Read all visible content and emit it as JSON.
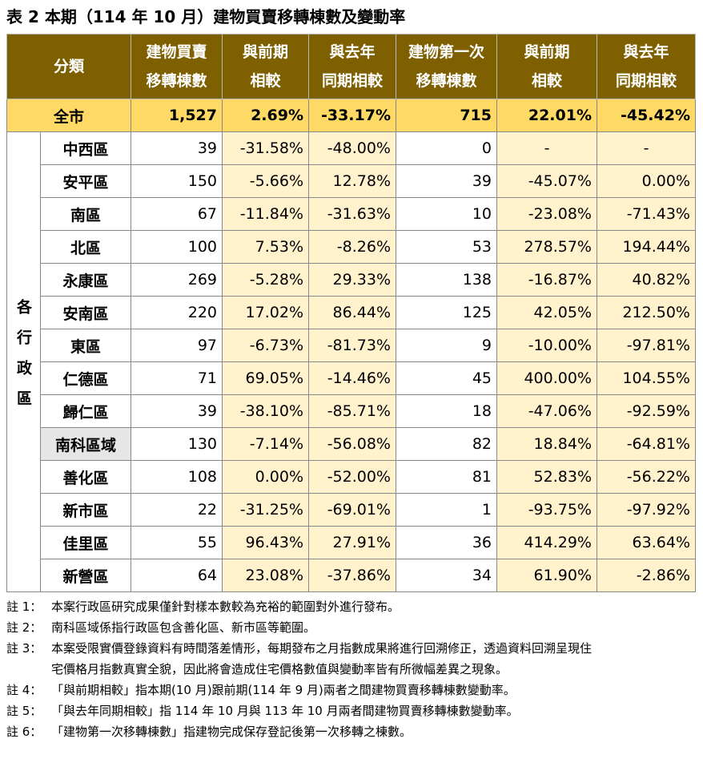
{
  "title": "表 2 本期（114 年 10 月）建物買賣移轉棟數及變動率",
  "table": {
    "headers": [
      [
        "分類"
      ],
      [
        "建物買賣",
        "移轉棟數"
      ],
      [
        "與前期",
        "相較"
      ],
      [
        "與去年",
        "同期相較"
      ],
      [
        "建物第一次",
        "移轉棟數"
      ],
      [
        "與前期",
        "相較"
      ],
      [
        "與去年",
        "同期相較"
      ]
    ],
    "total": [
      "全市",
      "1,527",
      "2.69%",
      "-33.17%",
      "715",
      "22.01%",
      "-45.42%"
    ],
    "group": "各行政區",
    "rows": [
      [
        "中西區",
        "39",
        "-31.58%",
        "-48.00%",
        "0",
        "-",
        "-"
      ],
      [
        "安平區",
        "150",
        "-5.66%",
        "12.78%",
        "39",
        "-45.07%",
        "0.00%"
      ],
      [
        "南區",
        "67",
        "-11.84%",
        "-31.63%",
        "10",
        "-23.08%",
        "-71.43%"
      ],
      [
        "北區",
        "100",
        "7.53%",
        "-8.26%",
        "53",
        "278.57%",
        "194.44%"
      ],
      [
        "永康區",
        "269",
        "-5.28%",
        "29.33%",
        "138",
        "-16.87%",
        "40.82%"
      ],
      [
        "安南區",
        "220",
        "17.02%",
        "86.44%",
        "125",
        "42.05%",
        "212.50%"
      ],
      [
        "東區",
        "97",
        "-6.73%",
        "-81.73%",
        "9",
        "-10.00%",
        "-97.81%"
      ],
      [
        "仁德區",
        "71",
        "69.05%",
        "-14.46%",
        "45",
        "400.00%",
        "104.55%"
      ],
      [
        "歸仁區",
        "39",
        "-38.10%",
        "-85.71%",
        "18",
        "-47.06%",
        "-92.59%"
      ],
      [
        "南科區域",
        "130",
        "-7.14%",
        "-56.08%",
        "82",
        "18.84%",
        "-64.81%"
      ],
      [
        "善化區",
        "108",
        "0.00%",
        "-52.00%",
        "81",
        "52.83%",
        "-56.22%"
      ],
      [
        "新市區",
        "22",
        "-31.25%",
        "-69.01%",
        "1",
        "-93.75%",
        "-97.92%"
      ],
      [
        "佳里區",
        "55",
        "96.43%",
        "27.91%",
        "36",
        "414.29%",
        "63.64%"
      ],
      [
        "新營區",
        "64",
        "23.08%",
        "-37.86%",
        "34",
        "61.90%",
        "-2.86%"
      ]
    ]
  },
  "notes": [
    {
      "label": "註 1：",
      "lines": [
        "本案行政區研究成果僅針對樣本數較為充裕的範圍對外進行發布。"
      ]
    },
    {
      "label": "註 2：",
      "lines": [
        "南科區域係指行政區包含善化區、新市區等範圍。"
      ]
    },
    {
      "label": "註 3：",
      "lines": [
        "本案受限實價登錄資料有時間落差情形，每期發布之月指數成果將進行回溯修正，透過資料回溯呈現住",
        "宅價格月指數真實全貌，因此將會造成住宅價格數值與變動率皆有所微幅差異之現象。"
      ]
    },
    {
      "label": "註 4：",
      "lines": [
        "「與前期相較」指本期(10 月)跟前期(114 年 9 月)兩者之間建物買賣移轉棟數變動率。"
      ]
    },
    {
      "label": "註 5：",
      "lines": [
        "「與去年同期相較」指 114 年 10 月與 113 年 10 月兩者間建物買賣移轉棟數變動率。"
      ]
    },
    {
      "label": "註 6：",
      "lines": [
        "「建物第一次移轉棟數」指建物完成保存登記後第一次移轉之棟數。"
      ]
    }
  ]
}
